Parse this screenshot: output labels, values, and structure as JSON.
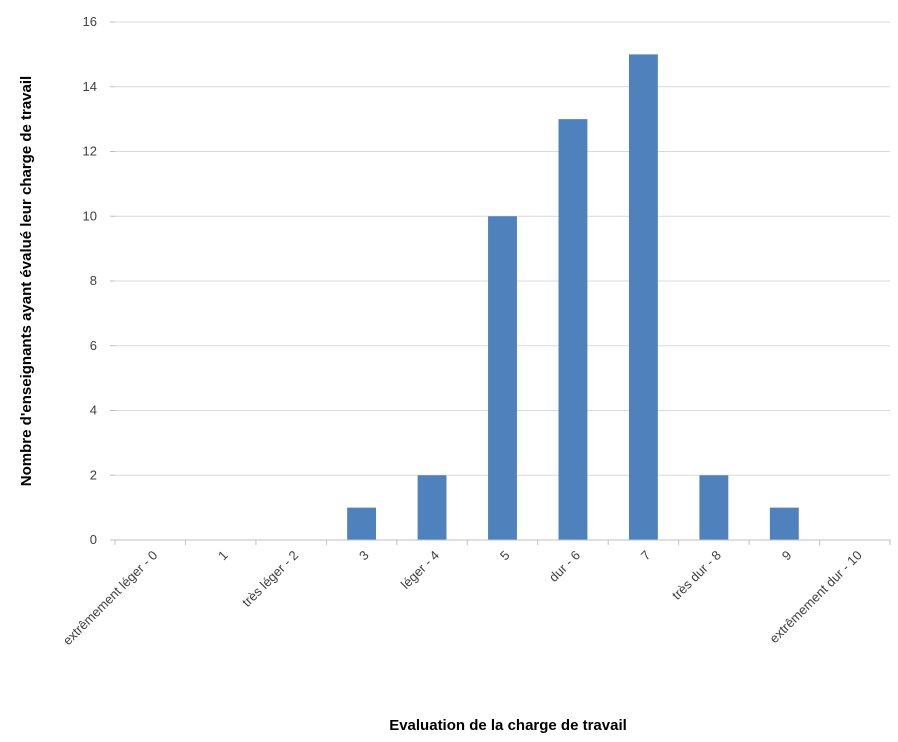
{
  "chart_data": {
    "type": "bar",
    "title": "",
    "xlabel": "Evaluation de la charge de travail",
    "ylabel": "Nombre d'enseignants ayant évalué leur charge de travail",
    "categories": [
      "extrêmement léger - 0",
      "1",
      "très léger - 2",
      "3",
      "léger - 4",
      "5",
      "dur - 6",
      "7",
      "très dur - 8",
      "9",
      "extrêmement dur - 10"
    ],
    "values": [
      0,
      0,
      0,
      1,
      2,
      10,
      13,
      15,
      2,
      1,
      0
    ],
    "ylim": [
      0,
      16
    ],
    "yticks": [
      0,
      2,
      4,
      6,
      8,
      10,
      12,
      14,
      16
    ],
    "grid": true,
    "legend": "none",
    "colors": {
      "bar": "#4f81bd",
      "grid": "#d9d9d9",
      "axis": "#bfbfbf"
    }
  }
}
